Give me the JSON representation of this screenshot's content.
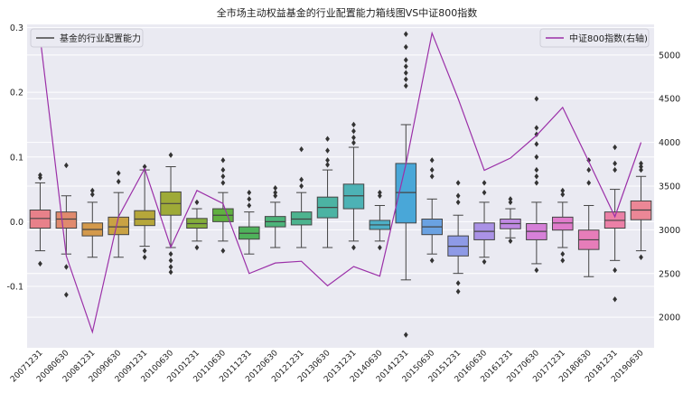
{
  "chart_data": {
    "type": "box",
    "title": "全市场主动权益基金的行业配置能力箱线图VS中证800指数",
    "categories": [
      "20071231",
      "20080630",
      "20081231",
      "20090630",
      "20091231",
      "20100630",
      "20101231",
      "20110630",
      "20111231",
      "20120630",
      "20121231",
      "20130630",
      "20131231",
      "20140630",
      "20141231",
      "20150630",
      "20151231",
      "20160630",
      "20161231",
      "20170630",
      "20171231",
      "20180630",
      "20181231",
      "20190630"
    ],
    "left_axis": {
      "ylim": [
        -0.195,
        0.305
      ],
      "ticks": [
        -0.1,
        0.0,
        0.1,
        0.2,
        0.3
      ],
      "tick_labels": [
        "-0.1",
        "0.0",
        "0.1",
        "0.2",
        "0.3"
      ]
    },
    "right_axis": {
      "ylim": [
        1650,
        5350
      ],
      "ticks": [
        2000,
        2500,
        3000,
        3500,
        4000,
        4500,
        5000
      ],
      "tick_labels": [
        "2000",
        "2500",
        "3000",
        "3500",
        "4000",
        "4500",
        "5000"
      ]
    },
    "legend_left": {
      "label": "基金的行业配置能力",
      "placement": "top-left"
    },
    "legend_right": {
      "label": "中证800指数(右轴)",
      "placement": "top-right"
    },
    "line_color": "#9b30a8",
    "boxes": [
      {
        "q1": -0.01,
        "med": 0.005,
        "q3": 0.018,
        "wlo": -0.045,
        "whi": 0.06,
        "fliers": [
          0.072,
          0.068,
          -0.065
        ],
        "color": "#e8818a"
      },
      {
        "q1": -0.01,
        "med": 0.004,
        "q3": 0.015,
        "wlo": -0.05,
        "whi": 0.04,
        "fliers": [
          0.087,
          -0.07,
          -0.113
        ],
        "color": "#e08a6e"
      },
      {
        "q1": -0.022,
        "med": -0.012,
        "q3": -0.002,
        "wlo": -0.055,
        "whi": 0.03,
        "fliers": [
          0.048,
          0.042
        ],
        "color": "#d49a4c"
      },
      {
        "q1": -0.02,
        "med": -0.008,
        "q3": 0.007,
        "wlo": -0.055,
        "whi": 0.045,
        "fliers": [
          0.075,
          0.062
        ],
        "color": "#c9a244"
      },
      {
        "q1": -0.006,
        "med": 0.004,
        "q3": 0.017,
        "wlo": -0.038,
        "whi": 0.08,
        "fliers": [
          0.085,
          -0.045,
          -0.055
        ],
        "color": "#b6a73a"
      },
      {
        "q1": 0.01,
        "med": 0.028,
        "q3": 0.046,
        "wlo": -0.04,
        "whi": 0.085,
        "fliers": [
          0.103,
          -0.05,
          -0.06,
          -0.07,
          -0.078
        ],
        "color": "#9eaa37"
      },
      {
        "q1": -0.01,
        "med": -0.003,
        "q3": 0.005,
        "wlo": -0.03,
        "whi": 0.02,
        "fliers": [
          0.03,
          -0.04
        ],
        "color": "#84ad3a"
      },
      {
        "q1": 0.0,
        "med": 0.01,
        "q3": 0.02,
        "wlo": -0.03,
        "whi": 0.045,
        "fliers": [
          0.095,
          0.08,
          0.07,
          0.06,
          -0.045
        ],
        "color": "#60b040"
      },
      {
        "q1": -0.027,
        "med": -0.018,
        "q3": -0.008,
        "wlo": -0.05,
        "whi": 0.015,
        "fliers": [
          0.045,
          0.035,
          0.025
        ],
        "color": "#4fb25b"
      },
      {
        "q1": -0.008,
        "med": 0.0,
        "q3": 0.008,
        "wlo": -0.04,
        "whi": 0.03,
        "fliers": [
          0.052,
          0.045,
          0.04
        ],
        "color": "#4cb47a"
      },
      {
        "q1": -0.005,
        "med": 0.004,
        "q3": 0.015,
        "wlo": -0.04,
        "whi": 0.045,
        "fliers": [
          0.112,
          0.065,
          0.055
        ],
        "color": "#4db48f"
      },
      {
        "q1": 0.006,
        "med": 0.022,
        "q3": 0.038,
        "wlo": -0.04,
        "whi": 0.08,
        "fliers": [
          0.128,
          0.11,
          0.095,
          0.088
        ],
        "color": "#4cb3a3"
      },
      {
        "q1": 0.02,
        "med": 0.04,
        "q3": 0.058,
        "wlo": -0.03,
        "whi": 0.115,
        "fliers": [
          0.15,
          0.14,
          0.13,
          0.122,
          -0.04
        ],
        "color": "#4db2b5"
      },
      {
        "q1": -0.012,
        "med": -0.005,
        "q3": 0.002,
        "wlo": -0.03,
        "whi": 0.025,
        "fliers": [
          0.045,
          0.04,
          -0.04
        ],
        "color": "#4dafc6"
      },
      {
        "q1": -0.002,
        "med": 0.045,
        "q3": 0.09,
        "wlo": -0.09,
        "whi": 0.15,
        "fliers": [
          0.29,
          0.27,
          0.25,
          0.24,
          0.23,
          0.22,
          0.21,
          -0.175
        ],
        "color": "#49a7d8"
      },
      {
        "q1": -0.02,
        "med": -0.008,
        "q3": 0.004,
        "wlo": -0.05,
        "whi": 0.035,
        "fliers": [
          0.095,
          0.08,
          0.07,
          -0.06
        ],
        "color": "#6aa2e2"
      },
      {
        "q1": -0.053,
        "med": -0.038,
        "q3": -0.022,
        "wlo": -0.08,
        "whi": 0.01,
        "fliers": [
          0.06,
          0.04,
          0.03,
          -0.095,
          -0.108
        ],
        "color": "#8e9ae6"
      },
      {
        "q1": -0.028,
        "med": -0.015,
        "q3": -0.002,
        "wlo": -0.055,
        "whi": 0.03,
        "fliers": [
          0.06,
          0.045,
          -0.062
        ],
        "color": "#aa92e6"
      },
      {
        "q1": -0.011,
        "med": -0.003,
        "q3": 0.004,
        "wlo": -0.025,
        "whi": 0.02,
        "fliers": [
          0.035,
          0.03,
          -0.03
        ],
        "color": "#c089e3"
      },
      {
        "q1": -0.028,
        "med": -0.015,
        "q3": -0.003,
        "wlo": -0.065,
        "whi": 0.03,
        "fliers": [
          0.19,
          0.145,
          0.135,
          0.12,
          0.1,
          0.08,
          0.07,
          0.06,
          -0.075
        ],
        "color": "#d680d8"
      },
      {
        "q1": -0.013,
        "med": -0.002,
        "q3": 0.007,
        "wlo": -0.04,
        "whi": 0.03,
        "fliers": [
          0.048,
          0.042,
          -0.05,
          -0.06
        ],
        "color": "#e07ccb"
      },
      {
        "q1": -0.043,
        "med": -0.028,
        "q3": -0.013,
        "wlo": -0.085,
        "whi": 0.025,
        "fliers": [
          0.095,
          0.08,
          0.06
        ],
        "color": "#e67db9"
      },
      {
        "q1": -0.01,
        "med": 0.002,
        "q3": 0.015,
        "wlo": -0.06,
        "whi": 0.05,
        "fliers": [
          0.115,
          0.09,
          0.08,
          -0.075,
          -0.12
        ],
        "color": "#eb80a6"
      },
      {
        "q1": 0.003,
        "med": 0.018,
        "q3": 0.032,
        "wlo": -0.045,
        "whi": 0.07,
        "fliers": [
          0.09,
          0.085,
          0.08,
          -0.055
        ],
        "color": "#ec8796"
      }
    ],
    "line_values": [
      5200,
      2700,
      1830,
      3150,
      3700,
      2800,
      3450,
      3300,
      2500,
      2620,
      2640,
      2360,
      2580,
      2470,
      3750,
      5250,
      4500,
      3680,
      3820,
      4080,
      4400,
      3780,
      3150,
      4000
    ]
  }
}
